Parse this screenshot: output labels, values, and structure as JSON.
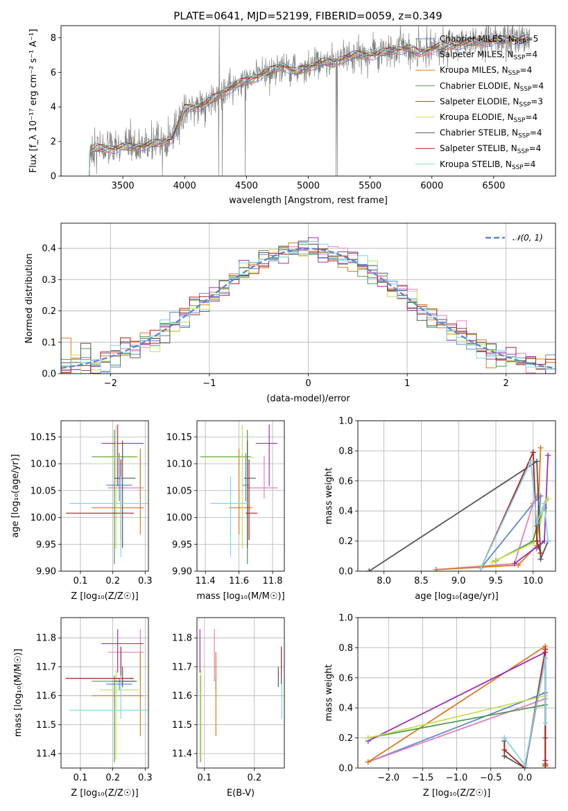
{
  "title": "PLATE=0641, MJD=52199, FIBERID=0059, z=0.349",
  "colors": {
    "Chabrier MILES": "#5b87d6",
    "Salpeter MILES": "#e67eb8",
    "Kroupa MILES": "#d97a1a",
    "Chabrier ELODIE": "#4d9a4d",
    "Salpeter ELODIE": "#9b2fb5",
    "Kroupa ELODIE": "#c5e04e",
    "Chabrier STELIB": "#555555",
    "Salpeter STELIB": "#b01c1c",
    "Kroupa STELIB": "#7fd6e6",
    "data": "#808080",
    "normal": "#5b87d6"
  },
  "chart_data": [
    {
      "id": "spectrum",
      "type": "line",
      "xlabel": "wavelength [Angstrom, rest frame]",
      "ylabel": "Flux [f_λ 10⁻¹⁷ erg cm⁻² s⁻¹ A⁻¹]",
      "xlim": [
        3000,
        7000
      ],
      "ylim": [
        0,
        8.7
      ],
      "xticks": [
        3500,
        4000,
        4500,
        5000,
        5500,
        6000,
        6500
      ],
      "yticks": [
        0,
        2,
        4,
        6,
        8
      ],
      "legend_position": "top-right",
      "legend": [
        {
          "name": "Chabrier MILES",
          "nssp": "5"
        },
        {
          "name": "Salpeter MILES",
          "nssp": "4"
        },
        {
          "name": "Kroupa MILES",
          "nssp": "4"
        },
        {
          "name": "Chabrier ELODIE",
          "nssp": "4"
        },
        {
          "name": "Salpeter ELODIE",
          "nssp": "3"
        },
        {
          "name": "Kroupa ELODIE",
          "nssp": "4"
        },
        {
          "name": "Chabrier STELIB",
          "nssp": "4"
        },
        {
          "name": "Salpeter STELIB",
          "nssp": "4"
        },
        {
          "name": "Kroupa STELIB",
          "nssp": "4"
        }
      ],
      "data_range": [
        3200,
        6790
      ],
      "model_continuum": {
        "x": [
          3200,
          3300,
          3400,
          3500,
          3600,
          3700,
          3800,
          3900,
          3950,
          4000,
          4100,
          4200,
          4300,
          4400,
          4500,
          4600,
          4700,
          4800,
          4900,
          5000,
          5100,
          5200,
          5300,
          5400,
          5500,
          5600,
          5700,
          5800,
          5900,
          6000,
          6100,
          6200,
          6300,
          6400,
          6500,
          6600,
          6700,
          6790
        ],
        "y": [
          1.5,
          1.6,
          1.6,
          1.65,
          1.7,
          1.8,
          1.9,
          2.2,
          3.0,
          3.9,
          4.0,
          4.3,
          4.8,
          5.2,
          5.5,
          5.8,
          6.1,
          6.4,
          6.0,
          6.3,
          6.6,
          6.5,
          6.9,
          7.0,
          7.0,
          7.1,
          7.3,
          7.4,
          7.1,
          7.4,
          7.5,
          7.6,
          7.7,
          7.8,
          7.8,
          7.9,
          7.9,
          7.9
        ]
      }
    },
    {
      "id": "residuals",
      "type": "line",
      "xlabel": "(data-model)/error",
      "ylabel": "Normed distribution",
      "xlim": [
        -2.5,
        2.5
      ],
      "ylim": [
        0,
        0.48
      ],
      "xticks": [
        -2,
        -1,
        0,
        1,
        2
      ],
      "yticks": [
        0.0,
        0.1,
        0.2,
        0.3,
        0.4
      ],
      "legend_position": "top-right",
      "legend_label": "𝒩(0, 1)",
      "bin_width": 0.1
    },
    {
      "id": "age_vs_Z",
      "type": "scatter",
      "xlabel": "Z [log₁₀(Z/Z☉)]",
      "ylabel": "age  [log₁₀(age/yr)]",
      "xlim": [
        0.04,
        0.31
      ],
      "ylim": [
        9.9,
        10.18
      ],
      "xticks": [
        0.1,
        0.2,
        0.3
      ],
      "yticks": [
        9.9,
        9.95,
        10.0,
        10.05,
        10.1,
        10.15
      ],
      "points": [
        {
          "series": "Chabrier MILES",
          "x": 0.22,
          "xerr": [
            0.04,
            0.04
          ],
          "y": 10.06,
          "yerr": [
            0.03,
            0.06
          ]
        },
        {
          "series": "Salpeter MILES",
          "x": 0.285,
          "xerr": [
            0.1,
            0.01
          ],
          "y": 10.055,
          "yerr": [
            0.02,
            0.06
          ]
        },
        {
          "series": "Kroupa MILES",
          "x": 0.285,
          "xerr": [
            0.15,
            0.01
          ],
          "y": 10.018,
          "yerr": [
            0.05,
            0.11
          ]
        },
        {
          "series": "Chabrier ELODIE",
          "x": 0.205,
          "xerr": [
            0.07,
            0.07
          ],
          "y": 10.113,
          "yerr": [
            0.2,
            0.05
          ]
        },
        {
          "series": "Salpeter ELODIE",
          "x": 0.215,
          "xerr": [
            0.05,
            0.08
          ],
          "y": 10.138,
          "yerr": [
            0.08,
            0.035
          ]
        },
        {
          "series": "Kroupa ELODIE",
          "x": 0.21,
          "xerr": [
            0.05,
            0.07
          ],
          "y": 10.112,
          "yerr": [
            0.17,
            0.06
          ]
        },
        {
          "series": "Chabrier STELIB",
          "x": 0.23,
          "xerr": [
            0.025,
            0.04
          ],
          "y": 10.073,
          "yerr": [
            0.13,
            0.07
          ]
        },
        {
          "series": "Salpeter STELIB",
          "x": 0.225,
          "xerr": [
            0.17,
            0.04
          ],
          "y": 10.008,
          "yerr": [
            0.05,
            0.1
          ]
        },
        {
          "series": "Kroupa STELIB",
          "x": 0.225,
          "xerr": [
            0.16,
            0.1
          ],
          "y": 10.026,
          "yerr": [
            0.1,
            0.05
          ]
        }
      ]
    },
    {
      "id": "age_vs_mass",
      "type": "scatter",
      "xlabel": "mass [log₁₀(M/M☉)]",
      "ylabel": "",
      "xlim": [
        11.35,
        11.87
      ],
      "ylim": [
        9.9,
        10.18
      ],
      "xticks": [
        11.4,
        11.6,
        11.8
      ],
      "yticks": [
        9.9,
        9.95,
        10.0,
        10.05,
        10.1,
        10.15
      ],
      "points": [
        {
          "series": "Chabrier MILES",
          "x": 11.64,
          "xerr": [
            0.02,
            0.02
          ],
          "y": 10.06,
          "yerr": [
            0.03,
            0.06
          ]
        },
        {
          "series": "Salpeter MILES",
          "x": 11.75,
          "xerr": [
            0.1,
            0.08
          ],
          "y": 10.055,
          "yerr": [
            0.02,
            0.06
          ]
        },
        {
          "series": "Kroupa MILES",
          "x": 11.6,
          "xerr": [
            0.06,
            0.08
          ],
          "y": 10.018,
          "yerr": [
            0.05,
            0.11
          ]
        },
        {
          "series": "Chabrier ELODIE",
          "x": 11.65,
          "xerr": [
            0.28,
            0.02
          ],
          "y": 10.113,
          "yerr": [
            0.2,
            0.05
          ]
        },
        {
          "series": "Salpeter ELODIE",
          "x": 11.78,
          "xerr": [
            0.08,
            0.05
          ],
          "y": 10.138,
          "yerr": [
            0.08,
            0.035
          ]
        },
        {
          "series": "Kroupa ELODIE",
          "x": 11.62,
          "xerr": [
            0.24,
            0.07
          ],
          "y": 10.112,
          "yerr": [
            0.17,
            0.06
          ]
        },
        {
          "series": "Chabrier STELIB",
          "x": 11.65,
          "xerr": [
            0.02,
            0.05
          ],
          "y": 10.073,
          "yerr": [
            0.13,
            0.07
          ]
        },
        {
          "series": "Salpeter STELIB",
          "x": 11.66,
          "xerr": [
            0.02,
            0.05
          ],
          "y": 10.008,
          "yerr": [
            0.05,
            0.1
          ]
        },
        {
          "series": "Kroupa STELIB",
          "x": 11.55,
          "xerr": [
            0.12,
            0.1
          ],
          "y": 10.026,
          "yerr": [
            0.1,
            0.05
          ]
        }
      ]
    },
    {
      "id": "weight_vs_age",
      "type": "line",
      "xlabel": "age  [log₁₀(age/yr)]",
      "ylabel": "mass weight",
      "xlim": [
        7.65,
        10.3
      ],
      "ylim": [
        0.0,
        1.0
      ],
      "xticks": [
        8.0,
        8.5,
        9.0,
        9.5,
        10.0
      ],
      "yticks": [
        0.0,
        0.2,
        0.4,
        0.6,
        0.8,
        1.0
      ],
      "series": [
        {
          "name": "Chabrier MILES",
          "x": [
            9.3,
            10.0,
            10.1,
            10.05,
            10.15
          ],
          "y": [
            0.02,
            0.45,
            0.5,
            0.15,
            0.2
          ]
        },
        {
          "name": "Salpeter MILES",
          "x": [
            8.7,
            9.75,
            10.0,
            10.05
          ],
          "y": [
            0.01,
            0.05,
            0.45,
            0.5
          ]
        },
        {
          "name": "Kroupa MILES",
          "x": [
            8.7,
            9.8,
            10.05,
            10.1
          ],
          "y": [
            0.01,
            0.04,
            0.17,
            0.82
          ]
        },
        {
          "name": "Chabrier ELODIE",
          "x": [
            9.5,
            10.0,
            10.05,
            10.15
          ],
          "y": [
            0.07,
            0.2,
            0.3,
            0.42
          ]
        },
        {
          "name": "Salpeter ELODIE",
          "x": [
            9.75,
            10.15,
            10.2
          ],
          "y": [
            0.05,
            0.2,
            0.77
          ]
        },
        {
          "name": "Kroupa ELODIE",
          "x": [
            9.45,
            10.05,
            10.15,
            10.2
          ],
          "y": [
            0.06,
            0.2,
            0.45,
            0.48
          ]
        },
        {
          "name": "Chabrier STELIB",
          "x": [
            7.8,
            10.05,
            10.1,
            10.2
          ],
          "y": [
            0.0,
            0.73,
            0.08,
            0.2
          ]
        },
        {
          "name": "Salpeter STELIB",
          "x": [
            9.3,
            10.0,
            10.05,
            10.1
          ],
          "y": [
            0.02,
            0.79,
            0.2,
            0.12
          ]
        },
        {
          "name": "Kroupa STELIB",
          "x": [
            9.3,
            9.97,
            10.05,
            10.15,
            10.2
          ],
          "y": [
            0.02,
            0.73,
            0.32,
            0.45,
            0.2
          ]
        }
      ]
    },
    {
      "id": "mass_vs_Z",
      "type": "scatter",
      "xlabel": "Z [log₁₀(Z/Z☉)]",
      "ylabel": "mass [log₁₀(M/M☉)]",
      "xlim": [
        0.04,
        0.31
      ],
      "ylim": [
        11.35,
        11.87
      ],
      "xticks": [
        0.1,
        0.2,
        0.3
      ],
      "yticks": [
        11.4,
        11.5,
        11.6,
        11.7,
        11.8
      ],
      "points": [
        {
          "series": "Chabrier MILES",
          "x": 0.22,
          "xerr": [
            0.04,
            0.04
          ],
          "y": 11.64,
          "yerr": [
            0.02,
            0.02
          ]
        },
        {
          "series": "Salpeter MILES",
          "x": 0.285,
          "xerr": [
            0.1,
            0.01
          ],
          "y": 11.75,
          "yerr": [
            0.1,
            0.08
          ]
        },
        {
          "series": "Kroupa MILES",
          "x": 0.285,
          "xerr": [
            0.15,
            0.01
          ],
          "y": 11.6,
          "yerr": [
            0.14,
            0.15
          ]
        },
        {
          "series": "Chabrier ELODIE",
          "x": 0.205,
          "xerr": [
            0.07,
            0.07
          ],
          "y": 11.65,
          "yerr": [
            0.28,
            0.02
          ]
        },
        {
          "series": "Salpeter ELODIE",
          "x": 0.215,
          "xerr": [
            0.05,
            0.08
          ],
          "y": 11.78,
          "yerr": [
            0.1,
            0.05
          ]
        },
        {
          "series": "Kroupa ELODIE",
          "x": 0.21,
          "xerr": [
            0.05,
            0.07
          ],
          "y": 11.62,
          "yerr": [
            0.24,
            0.07
          ]
        },
        {
          "series": "Chabrier STELIB",
          "x": 0.23,
          "xerr": [
            0.025,
            0.04
          ],
          "y": 11.65,
          "yerr": [
            0.02,
            0.05
          ]
        },
        {
          "series": "Salpeter STELIB",
          "x": 0.225,
          "xerr": [
            0.17,
            0.04
          ],
          "y": 11.66,
          "yerr": [
            0.02,
            0.11
          ]
        },
        {
          "series": "Kroupa STELIB",
          "x": 0.225,
          "xerr": [
            0.16,
            0.1
          ],
          "y": 11.55,
          "yerr": [
            0.03,
            0.12
          ]
        }
      ]
    },
    {
      "id": "mass_vs_ebv",
      "type": "scatter",
      "xlabel": "E(B-V)",
      "ylabel": "",
      "xlim": [
        0.085,
        0.26
      ],
      "ylim": [
        11.35,
        11.87
      ],
      "xticks": [
        0.1,
        0.2
      ],
      "yticks": [
        11.4,
        11.5,
        11.6,
        11.7,
        11.8
      ],
      "points": [
        {
          "series": "Chabrier MILES",
          "x": 0.123,
          "xerr": [
            0,
            0
          ],
          "y": 11.64,
          "yerr": [
            0.02,
            0.02
          ]
        },
        {
          "series": "Salpeter MILES",
          "x": 0.12,
          "xerr": [
            0,
            0
          ],
          "y": 11.75,
          "yerr": [
            0.1,
            0.08
          ]
        },
        {
          "series": "Kroupa MILES",
          "x": 0.123,
          "xerr": [
            0,
            0
          ],
          "y": 11.6,
          "yerr": [
            0.14,
            0.15
          ]
        },
        {
          "series": "Chabrier ELODIE",
          "x": 0.092,
          "xerr": [
            0,
            0
          ],
          "y": 11.65,
          "yerr": [
            0.28,
            0.02
          ]
        },
        {
          "series": "Salpeter ELODIE",
          "x": 0.091,
          "xerr": [
            0,
            0
          ],
          "y": 11.78,
          "yerr": [
            0.1,
            0.05
          ]
        },
        {
          "series": "Kroupa ELODIE",
          "x": 0.093,
          "xerr": [
            0,
            0
          ],
          "y": 11.62,
          "yerr": [
            0.24,
            0.07
          ]
        },
        {
          "series": "Chabrier STELIB",
          "x": 0.248,
          "xerr": [
            0,
            0
          ],
          "y": 11.65,
          "yerr": [
            0.02,
            0.05
          ]
        },
        {
          "series": "Salpeter STELIB",
          "x": 0.254,
          "xerr": [
            0,
            0
          ],
          "y": 11.66,
          "yerr": [
            0.02,
            0.11
          ]
        },
        {
          "series": "Kroupa STELIB",
          "x": 0.255,
          "xerr": [
            0,
            0
          ],
          "y": 11.55,
          "yerr": [
            0.03,
            0.12
          ]
        }
      ]
    },
    {
      "id": "weight_vs_Z",
      "type": "line",
      "xlabel": "Z [log₁₀(Z/Z☉)]",
      "ylabel": "mass weight",
      "xlim": [
        -2.45,
        0.45
      ],
      "ylim": [
        0.0,
        1.0
      ],
      "xticks": [
        -2.0,
        -1.5,
        -1.0,
        -0.5,
        0.0
      ],
      "yticks": [
        0.0,
        0.2,
        0.4,
        0.6,
        0.8,
        1.0
      ],
      "series": [
        {
          "name": "Chabrier MILES",
          "x": [
            -2.3,
            0.3,
            0.3
          ],
          "y": [
            0.04,
            0.5,
            0.02
          ]
        },
        {
          "name": "Salpeter MILES",
          "x": [
            -2.3,
            0.3,
            0.3
          ],
          "y": [
            0.04,
            0.46,
            0.05
          ]
        },
        {
          "name": "Kroupa MILES",
          "x": [
            -2.3,
            0.3,
            0.3
          ],
          "y": [
            0.04,
            0.81,
            0.01
          ]
        },
        {
          "name": "Chabrier ELODIE",
          "x": [
            -2.3,
            0.3,
            0.3
          ],
          "y": [
            0.2,
            0.42,
            0.03
          ]
        },
        {
          "name": "Salpeter ELODIE",
          "x": [
            -2.3,
            0.3,
            0.3
          ],
          "y": [
            0.18,
            0.77,
            0.05
          ]
        },
        {
          "name": "Kroupa ELODIE",
          "x": [
            -2.3,
            0.3,
            0.3
          ],
          "y": [
            0.2,
            0.48,
            0.02
          ]
        },
        {
          "name": "Chabrier STELIB",
          "x": [
            -0.3,
            -0.3,
            0.0,
            0.3,
            0.3
          ],
          "y": [
            0.18,
            0.08,
            0.0,
            0.73,
            0.2
          ]
        },
        {
          "name": "Salpeter STELIB",
          "x": [
            -0.3,
            -0.3,
            0.0,
            0.3,
            0.3
          ],
          "y": [
            0.2,
            0.12,
            0.0,
            0.79,
            0.02
          ]
        },
        {
          "name": "Kroupa STELIB",
          "x": [
            -0.3,
            0.0,
            0.3,
            0.3
          ],
          "y": [
            0.2,
            0.02,
            0.73,
            0.3
          ]
        }
      ]
    }
  ]
}
